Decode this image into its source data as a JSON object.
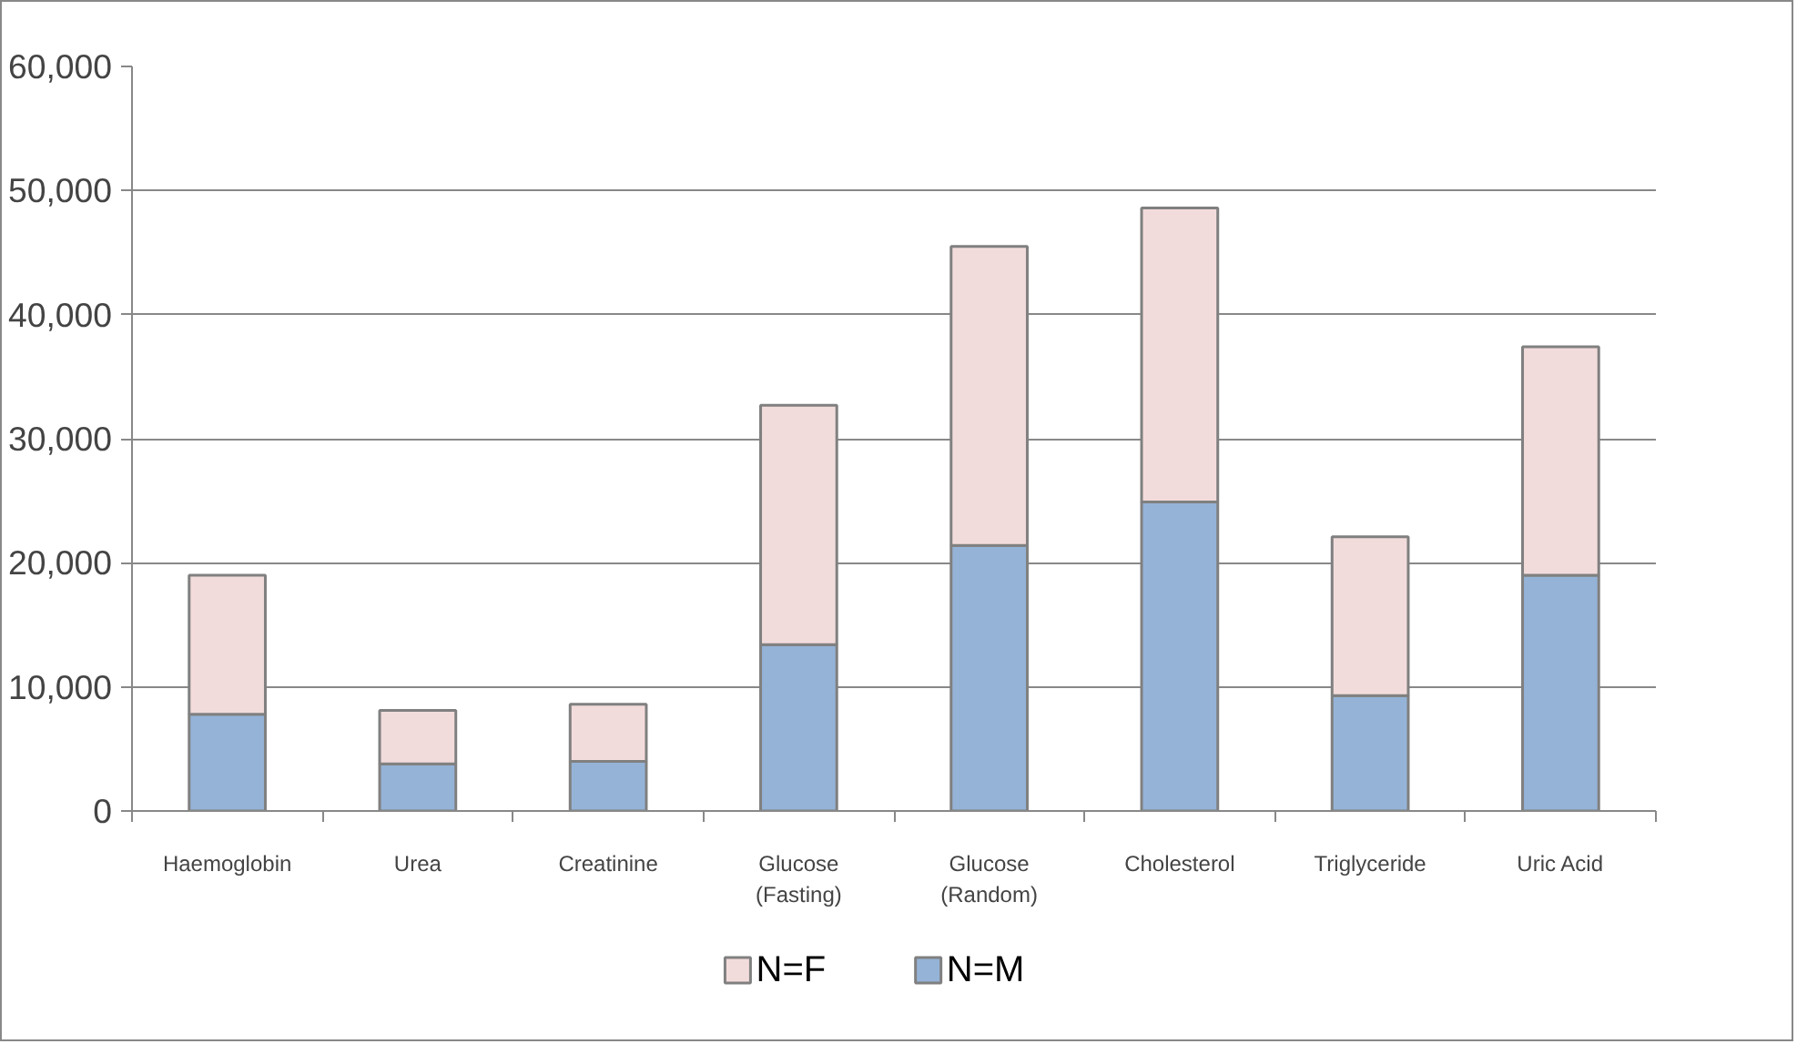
{
  "chart_data": {
    "type": "bar",
    "stacked": true,
    "categories": [
      "Haemoglobin",
      "Urea",
      "Creatinine",
      "Glucose\n(Fasting)",
      "Glucose\n(Random)",
      "Cholesterol",
      "Triglyceride",
      "Uric Acid"
    ],
    "series": [
      {
        "name": "N=M",
        "color": "#95b3d7",
        "values": [
          7800,
          3800,
          4000,
          13400,
          21400,
          24900,
          9300,
          19000
        ]
      },
      {
        "name": "N=F",
        "color": "#f2dcdb",
        "values": [
          11200,
          4300,
          4600,
          19300,
          24100,
          23700,
          12800,
          18400
        ]
      }
    ],
    "ylim": [
      0,
      60000
    ],
    "yticks": [
      {
        "value": 0,
        "label": "0"
      },
      {
        "value": 10000,
        "label": "10,000"
      },
      {
        "value": 20000,
        "label": "20,000"
      },
      {
        "value": 30000,
        "label": "30,000"
      },
      {
        "value": 40000,
        "label": "40,000"
      },
      {
        "value": 50000,
        "label": "50,000"
      },
      {
        "value": 60000,
        "label": "60,000"
      }
    ],
    "grid": "y",
    "legend": "bottom"
  }
}
